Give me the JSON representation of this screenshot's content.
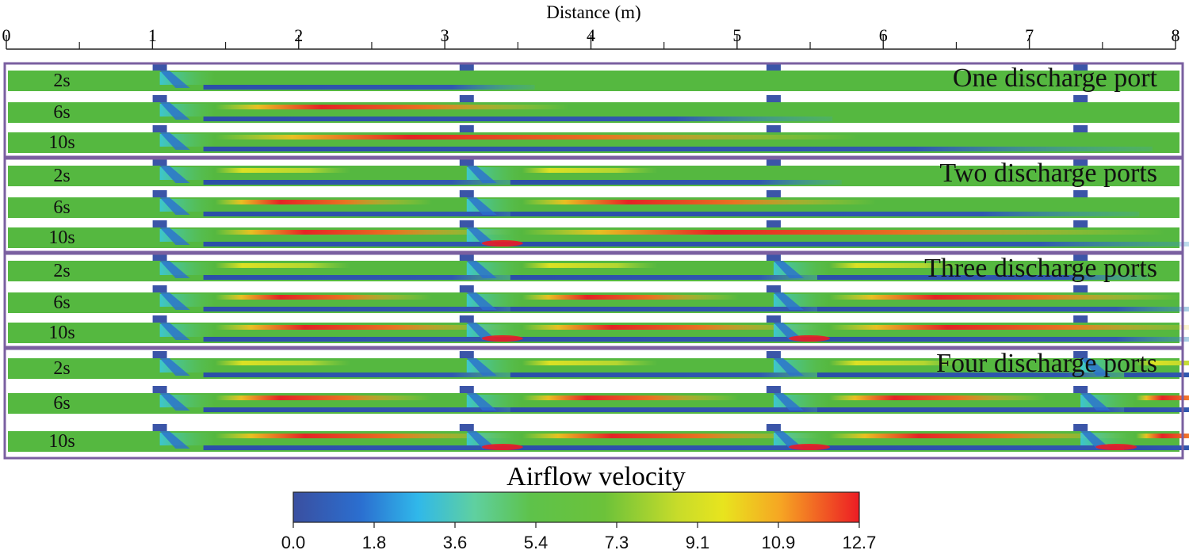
{
  "axis": {
    "title": "Distance (m)",
    "min": 0,
    "max": 8,
    "ticks": [
      "0",
      "1",
      "2",
      "3",
      "4",
      "5",
      "6",
      "7",
      "8"
    ]
  },
  "port_positions_m": [
    1.05,
    3.15,
    5.25,
    7.35
  ],
  "panels": [
    {
      "label": "One discharge port",
      "ports": 1,
      "rows": [
        "2s",
        "6s",
        "10s"
      ]
    },
    {
      "label": "Two discharge ports",
      "ports": 2,
      "rows": [
        "2s",
        "6s",
        "10s"
      ]
    },
    {
      "label": "Three discharge ports",
      "ports": 3,
      "rows": [
        "2s",
        "6s",
        "10s"
      ]
    },
    {
      "label": "Four discharge ports",
      "ports": 4,
      "rows": [
        "2s",
        "6s",
        "10s"
      ]
    }
  ],
  "colorbar": {
    "title": "Airflow velocity",
    "min": 0.0,
    "max": 12.7,
    "tick_labels": [
      "0.0",
      "1.8",
      "3.6",
      "5.4",
      "7.3",
      "9.1",
      "10.9",
      "12.7"
    ],
    "colors": [
      "#3a4fa0",
      "#2196e0",
      "#38c8e8",
      "#5ed06a",
      "#56bb3a",
      "#9bd23a",
      "#e3e322",
      "#f5a323",
      "#ec1c24"
    ]
  },
  "colors": {
    "panel_border": "#7a5fa0",
    "field_base": "#55b840",
    "port": "#3b55a8"
  }
}
